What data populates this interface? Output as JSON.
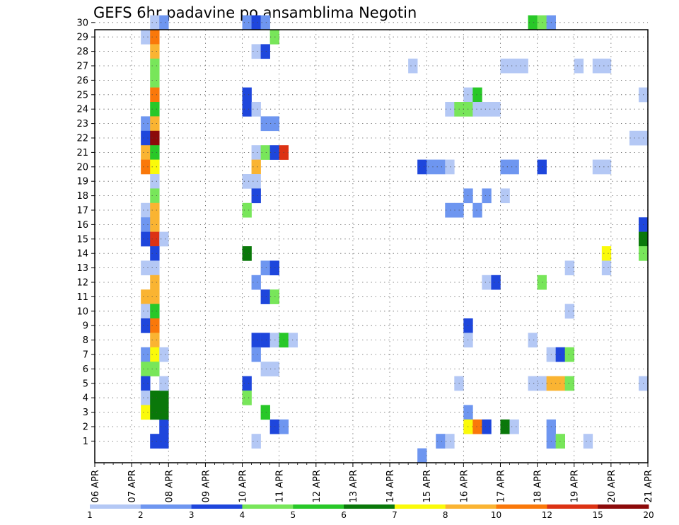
{
  "chart_data": {
    "type": "heatmap",
    "title": "GEFS 6hr padavine po ansamblima Negotin",
    "xlabel": "",
    "ylabel": "",
    "x_start": "06 APR",
    "x_ticks": [
      "06 APR",
      "07 APR",
      "08 APR",
      "09 APR",
      "10 APR",
      "11 APR",
      "12 APR",
      "13 APR",
      "14 APR",
      "15 APR",
      "16 APR",
      "17 APR",
      "18 APR",
      "19 APR",
      "20 APR",
      "21 APR"
    ],
    "y_ticks": [
      1,
      2,
      3,
      4,
      5,
      6,
      7,
      8,
      9,
      10,
      11,
      12,
      13,
      14,
      15,
      16,
      17,
      18,
      19,
      20,
      21,
      22,
      23,
      24,
      25,
      26,
      27,
      28,
      29,
      30
    ],
    "grid": true,
    "colorbar": {
      "labels": [
        "1",
        "2",
        "3",
        "4",
        "5",
        "6",
        "7",
        "8",
        "10",
        "12",
        "15",
        "20"
      ],
      "colors": [
        "#b4c8f5",
        "#6e96f0",
        "#1e46dc",
        "#78e65a",
        "#28c828",
        "#0a780a",
        "#fafa0a",
        "#fab432",
        "#fa780a",
        "#dc3214",
        "#8c0a0a"
      ]
    },
    "values_note_units": "mm per 6h, class index into colorbar",
    "cells": [
      {
        "m": 1,
        "t": "07 APR 18Z",
        "c": 2
      },
      {
        "m": 2,
        "t": "07 APR 18Z",
        "c": 2
      },
      {
        "m": 3,
        "t": "07 APR 18Z",
        "c": 5
      },
      {
        "m": 4,
        "t": "07 APR 18Z",
        "c": 5
      },
      {
        "m": 5,
        "t": "07 APR 18Z",
        "c": 0
      },
      {
        "m": 30,
        "t": "07 APR 12Z",
        "c": 0
      },
      {
        "m": 30,
        "t": "07 APR 18Z",
        "c": 1
      },
      {
        "m": 29,
        "t": "07 APR 06Z",
        "c": 0
      },
      {
        "m": 29,
        "t": "07 APR 12Z",
        "c": 8
      },
      {
        "m": 28,
        "t": "07 APR 12Z",
        "c": 7
      },
      {
        "m": 27,
        "t": "07 APR 12Z",
        "c": 3
      },
      {
        "m": 26,
        "t": "07 APR 12Z",
        "c": 3
      },
      {
        "m": 25,
        "t": "07 APR 12Z",
        "c": 8
      },
      {
        "m": 24,
        "t": "07 APR 12Z",
        "c": 4
      },
      {
        "m": 23,
        "t": "07 APR 06Z",
        "c": 1
      },
      {
        "m": 23,
        "t": "07 APR 12Z",
        "c": 7
      },
      {
        "m": 22,
        "t": "07 APR 06Z",
        "c": 2
      },
      {
        "m": 22,
        "t": "07 APR 12Z",
        "c": 10
      },
      {
        "m": 21,
        "t": "07 APR 06Z",
        "c": 7
      },
      {
        "m": 21,
        "t": "07 APR 12Z",
        "c": 4
      },
      {
        "m": 20,
        "t": "07 APR 06Z",
        "c": 8
      },
      {
        "m": 20,
        "t": "07 APR 12Z",
        "c": 6
      },
      {
        "m": 19,
        "t": "07 APR 12Z",
        "c": 0
      },
      {
        "m": 18,
        "t": "07 APR 12Z",
        "c": 3
      },
      {
        "m": 17,
        "t": "07 APR 06Z",
        "c": 0
      },
      {
        "m": 17,
        "t": "07 APR 12Z",
        "c": 7
      },
      {
        "m": 16,
        "t": "07 APR 06Z",
        "c": 1
      },
      {
        "m": 16,
        "t": "07 APR 12Z",
        "c": 7
      },
      {
        "m": 15,
        "t": "07 APR 06Z",
        "c": 2
      },
      {
        "m": 15,
        "t": "07 APR 12Z",
        "c": 9
      },
      {
        "m": 15,
        "t": "07 APR 18Z",
        "c": 0
      },
      {
        "m": 14,
        "t": "07 APR 12Z",
        "c": 2
      },
      {
        "m": 13,
        "t": "07 APR 06Z",
        "c": 0
      },
      {
        "m": 13,
        "t": "07 APR 12Z",
        "c": 0
      },
      {
        "m": 12,
        "t": "07 APR 12Z",
        "c": 7
      },
      {
        "m": 11,
        "t": "07 APR 06Z",
        "c": 7
      },
      {
        "m": 11,
        "t": "07 APR 12Z",
        "c": 7
      },
      {
        "m": 10,
        "t": "07 APR 06Z",
        "c": 0
      },
      {
        "m": 10,
        "t": "07 APR 12Z",
        "c": 4
      },
      {
        "m": 9,
        "t": "07 APR 06Z",
        "c": 2
      },
      {
        "m": 9,
        "t": "07 APR 12Z",
        "c": 8
      },
      {
        "m": 8,
        "t": "07 APR 12Z",
        "c": 7
      },
      {
        "m": 7,
        "t": "07 APR 06Z",
        "c": 1
      },
      {
        "m": 7,
        "t": "07 APR 12Z",
        "c": 6
      },
      {
        "m": 7,
        "t": "07 APR 18Z",
        "c": 0
      },
      {
        "m": 6,
        "t": "07 APR 06Z",
        "c": 3
      },
      {
        "m": 6,
        "t": "07 APR 12Z",
        "c": 3
      },
      {
        "m": 5,
        "t": "07 APR 06Z",
        "c": 2
      },
      {
        "m": 4,
        "t": "07 APR 06Z",
        "c": 0
      },
      {
        "m": 4,
        "t": "07 APR 12Z",
        "c": 5
      },
      {
        "m": 3,
        "t": "07 APR 06Z",
        "c": 6
      },
      {
        "m": 3,
        "t": "07 APR 12Z",
        "c": 5
      },
      {
        "m": 1,
        "t": "07 APR 12Z",
        "c": 2
      },
      {
        "m": 30,
        "t": "10 APR 00Z",
        "c": 1
      },
      {
        "m": 30,
        "t": "10 APR 06Z",
        "c": 2
      },
      {
        "m": 30,
        "t": "10 APR 12Z",
        "c": 1
      },
      {
        "m": 29,
        "t": "10 APR 18Z",
        "c": 3
      },
      {
        "m": 28,
        "t": "10 APR 06Z",
        "c": 0
      },
      {
        "m": 28,
        "t": "10 APR 12Z",
        "c": 2
      },
      {
        "m": 25,
        "t": "10 APR 00Z",
        "c": 2
      },
      {
        "m": 24,
        "t": "10 APR 00Z",
        "c": 2
      },
      {
        "m": 24,
        "t": "10 APR 06Z",
        "c": 0
      },
      {
        "m": 23,
        "t": "10 APR 12Z",
        "c": 1
      },
      {
        "m": 23,
        "t": "10 APR 18Z",
        "c": 1
      },
      {
        "m": 21,
        "t": "10 APR 06Z",
        "c": 0
      },
      {
        "m": 21,
        "t": "10 APR 12Z",
        "c": 3
      },
      {
        "m": 21,
        "t": "10 APR 18Z",
        "c": 2
      },
      {
        "m": 21,
        "t": "11 APR 00Z",
        "c": 9
      },
      {
        "m": 20,
        "t": "10 APR 06Z",
        "c": 7
      },
      {
        "m": 19,
        "t": "10 APR 00Z",
        "c": 0
      },
      {
        "m": 19,
        "t": "10 APR 06Z",
        "c": 0
      },
      {
        "m": 18,
        "t": "10 APR 06Z",
        "c": 2
      },
      {
        "m": 17,
        "t": "10 APR 00Z",
        "c": 3
      },
      {
        "m": 14,
        "t": "10 APR 00Z",
        "c": 5
      },
      {
        "m": 13,
        "t": "10 APR 12Z",
        "c": 1
      },
      {
        "m": 13,
        "t": "10 APR 18Z",
        "c": 2
      },
      {
        "m": 12,
        "t": "10 APR 06Z",
        "c": 1
      },
      {
        "m": 11,
        "t": "10 APR 12Z",
        "c": 2
      },
      {
        "m": 11,
        "t": "10 APR 18Z",
        "c": 3
      },
      {
        "m": 8,
        "t": "10 APR 06Z",
        "c": 2
      },
      {
        "m": 8,
        "t": "10 APR 12Z",
        "c": 2
      },
      {
        "m": 8,
        "t": "10 APR 18Z",
        "c": 0
      },
      {
        "m": 8,
        "t": "11 APR 00Z",
        "c": 4
      },
      {
        "m": 8,
        "t": "11 APR 06Z",
        "c": 0
      },
      {
        "m": 7,
        "t": "10 APR 06Z",
        "c": 1
      },
      {
        "m": 6,
        "t": "10 APR 12Z",
        "c": 0
      },
      {
        "m": 6,
        "t": "10 APR 18Z",
        "c": 0
      },
      {
        "m": 5,
        "t": "10 APR 00Z",
        "c": 2
      },
      {
        "m": 4,
        "t": "10 APR 00Z",
        "c": 3
      },
      {
        "m": 3,
        "t": "10 APR 12Z",
        "c": 4
      },
      {
        "m": 2,
        "t": "10 APR 18Z",
        "c": 2
      },
      {
        "m": 2,
        "t": "11 APR 00Z",
        "c": 1
      },
      {
        "m": 1,
        "t": "10 APR 06Z",
        "c": 0
      },
      {
        "m": 27,
        "t": "14 APR 12Z",
        "c": 0
      },
      {
        "m": 20,
        "t": "14 APR 18Z",
        "c": 2
      },
      {
        "m": 20,
        "t": "15 APR 00Z",
        "c": 1
      },
      {
        "m": 20,
        "t": "15 APR 06Z",
        "c": 1
      },
      {
        "m": 20,
        "t": "15 APR 12Z",
        "c": 0
      },
      {
        "m": 1,
        "t": "15 APR 06Z",
        "c": 1
      },
      {
        "m": 1,
        "t": "15 APR 12Z",
        "c": 0
      },
      {
        "m": 0,
        "t": "14 APR 18Z",
        "c": 1
      },
      {
        "m": 25,
        "t": "16 APR 00Z",
        "c": 0
      },
      {
        "m": 25,
        "t": "16 APR 06Z",
        "c": 4
      },
      {
        "m": 24,
        "t": "15 APR 12Z",
        "c": 0
      },
      {
        "m": 24,
        "t": "15 APR 18Z",
        "c": 3
      },
      {
        "m": 24,
        "t": "16 APR 00Z",
        "c": 3
      },
      {
        "m": 24,
        "t": "16 APR 06Z",
        "c": 0
      },
      {
        "m": 24,
        "t": "16 APR 12Z",
        "c": 0
      },
      {
        "m": 24,
        "t": "16 APR 18Z",
        "c": 0
      },
      {
        "m": 18,
        "t": "16 APR 00Z",
        "c": 1
      },
      {
        "m": 18,
        "t": "16 APR 12Z",
        "c": 1
      },
      {
        "m": 17,
        "t": "15 APR 12Z",
        "c": 1
      },
      {
        "m": 17,
        "t": "15 APR 18Z",
        "c": 1
      },
      {
        "m": 17,
        "t": "16 APR 06Z",
        "c": 1
      },
      {
        "m": 18,
        "t": "17 APR 00Z",
        "c": 0
      },
      {
        "m": 12,
        "t": "16 APR 12Z",
        "c": 0
      },
      {
        "m": 12,
        "t": "16 APR 18Z",
        "c": 2
      },
      {
        "m": 9,
        "t": "16 APR 00Z",
        "c": 2
      },
      {
        "m": 8,
        "t": "16 APR 00Z",
        "c": 0
      },
      {
        "m": 5,
        "t": "15 APR 18Z",
        "c": 0
      },
      {
        "m": 3,
        "t": "16 APR 00Z",
        "c": 1
      },
      {
        "m": 2,
        "t": "16 APR 00Z",
        "c": 6
      },
      {
        "m": 2,
        "t": "16 APR 06Z",
        "c": 8
      },
      {
        "m": 2,
        "t": "16 APR 12Z",
        "c": 2
      },
      {
        "m": 2,
        "t": "17 APR 00Z",
        "c": 5
      },
      {
        "m": 2,
        "t": "17 APR 06Z",
        "c": 0
      },
      {
        "m": 30,
        "t": "17 APR 18Z",
        "c": 4
      },
      {
        "m": 30,
        "t": "18 APR 00Z",
        "c": 3
      },
      {
        "m": 30,
        "t": "18 APR 06Z",
        "c": 1
      },
      {
        "m": 27,
        "t": "17 APR 00Z",
        "c": 0
      },
      {
        "m": 27,
        "t": "17 APR 06Z",
        "c": 0
      },
      {
        "m": 27,
        "t": "17 APR 12Z",
        "c": 0
      },
      {
        "m": 20,
        "t": "17 APR 00Z",
        "c": 1
      },
      {
        "m": 20,
        "t": "17 APR 06Z",
        "c": 1
      },
      {
        "m": 20,
        "t": "18 APR 00Z",
        "c": 2
      },
      {
        "m": 12,
        "t": "18 APR 00Z",
        "c": 3
      },
      {
        "m": 8,
        "t": "17 APR 18Z",
        "c": 0
      },
      {
        "m": 5,
        "t": "17 APR 18Z",
        "c": 0
      },
      {
        "m": 5,
        "t": "18 APR 00Z",
        "c": 0
      },
      {
        "m": 5,
        "t": "18 APR 06Z",
        "c": 7
      },
      {
        "m": 5,
        "t": "18 APR 12Z",
        "c": 7
      },
      {
        "m": 5,
        "t": "18 APR 18Z",
        "c": 3
      },
      {
        "m": 7,
        "t": "18 APR 06Z",
        "c": 0
      },
      {
        "m": 7,
        "t": "18 APR 12Z",
        "c": 2
      },
      {
        "m": 7,
        "t": "18 APR 18Z",
        "c": 3
      },
      {
        "m": 2,
        "t": "18 APR 06Z",
        "c": 1
      },
      {
        "m": 1,
        "t": "18 APR 06Z",
        "c": 1
      },
      {
        "m": 1,
        "t": "18 APR 12Z",
        "c": 3
      },
      {
        "m": 13,
        "t": "18 APR 18Z",
        "c": 0
      },
      {
        "m": 10,
        "t": "18 APR 18Z",
        "c": 0
      },
      {
        "m": 27,
        "t": "19 APR 00Z",
        "c": 0
      },
      {
        "m": 27,
        "t": "19 APR 12Z",
        "c": 0
      },
      {
        "m": 27,
        "t": "19 APR 18Z",
        "c": 0
      },
      {
        "m": 20,
        "t": "19 APR 12Z",
        "c": 0
      },
      {
        "m": 20,
        "t": "19 APR 18Z",
        "c": 0
      },
      {
        "m": 1,
        "t": "19 APR 06Z",
        "c": 0
      },
      {
        "m": 14,
        "t": "19 APR 18Z",
        "c": 6
      },
      {
        "m": 13,
        "t": "19 APR 18Z",
        "c": 0
      },
      {
        "m": 22,
        "t": "20 APR 12Z",
        "c": 0
      },
      {
        "m": 22,
        "t": "20 APR 18Z",
        "c": 0
      },
      {
        "m": 25,
        "t": "20 APR 18Z",
        "c": 0
      },
      {
        "m": 16,
        "t": "20 APR 18Z",
        "c": 2
      },
      {
        "m": 15,
        "t": "20 APR 18Z",
        "c": 5
      },
      {
        "m": 14,
        "t": "20 APR 18Z",
        "c": 3
      },
      {
        "m": 5,
        "t": "20 APR 18Z",
        "c": 0
      }
    ]
  }
}
